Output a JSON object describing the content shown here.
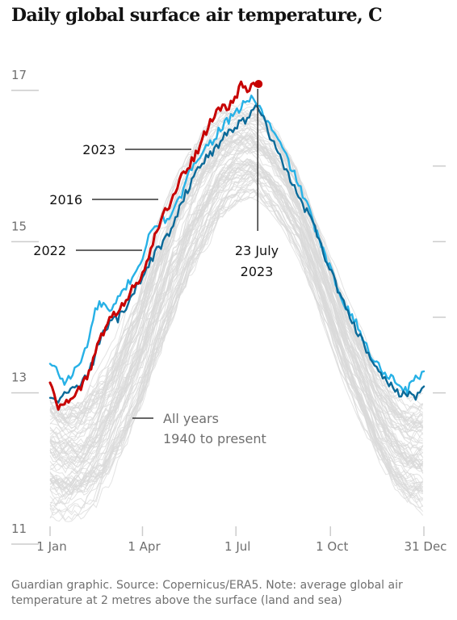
{
  "chart_data": {
    "type": "line",
    "title": "Daily global surface air temperature, C",
    "xlabel": "",
    "ylabel": "",
    "x_ticks": [
      {
        "day": 1,
        "label": "1 Jan"
      },
      {
        "day": 91,
        "label": "1 Apr"
      },
      {
        "day": 182,
        "label": "1 Jul"
      },
      {
        "day": 274,
        "label": "1 Oct"
      },
      {
        "day": 365,
        "label": "31 Dec"
      }
    ],
    "y_ticks": [
      {
        "value": 11,
        "label": "11"
      },
      {
        "value": 13,
        "label": "13"
      },
      {
        "value": 15,
        "label": "15"
      },
      {
        "value": 17,
        "label": "17"
      }
    ],
    "xlim": [
      1,
      365
    ],
    "ylim": [
      11,
      17
    ],
    "grid": false,
    "x_days": [
      1,
      15,
      32,
      46,
      60,
      74,
      91,
      105,
      121,
      135,
      152,
      166,
      182,
      196,
      204,
      213,
      227,
      244,
      258,
      274,
      288,
      305,
      319,
      335,
      349,
      365
    ],
    "envelope": {
      "name": "All years 1940 to present",
      "low": [
        11.1,
        11.05,
        11.1,
        11.25,
        11.55,
        11.9,
        12.45,
        13.0,
        13.6,
        14.1,
        14.6,
        15.0,
        15.25,
        15.35,
        15.3,
        15.2,
        14.95,
        14.5,
        14.0,
        13.4,
        12.85,
        12.3,
        11.85,
        11.45,
        11.2,
        11.1
      ],
      "high": [
        12.9,
        12.75,
        12.8,
        13.05,
        13.4,
        13.85,
        14.45,
        15.0,
        15.55,
        15.95,
        16.3,
        16.5,
        16.6,
        16.6,
        16.55,
        16.45,
        16.2,
        15.75,
        15.25,
        14.65,
        14.1,
        13.6,
        13.15,
        12.85,
        12.75,
        12.8
      ],
      "count": 84,
      "color": "#d9d9d9"
    },
    "series": [
      {
        "name": "2016",
        "label": "2016",
        "color": "#27b1e6",
        "x": [
          1,
          8,
          15,
          22,
          32,
          39,
          46,
          53,
          60,
          67,
          74,
          81,
          91,
          98,
          105,
          112,
          121,
          128,
          135,
          142,
          152,
          159,
          166,
          173,
          182,
          189,
          196,
          203,
          210,
          217,
          227,
          234,
          244,
          251,
          258,
          265,
          274,
          281,
          288,
          295,
          305,
          312,
          319,
          326,
          335,
          342,
          349,
          356,
          365
        ],
        "values": [
          13.15,
          13.05,
          12.9,
          13.0,
          13.2,
          13.5,
          13.9,
          13.95,
          13.8,
          14.0,
          14.15,
          14.3,
          14.55,
          14.85,
          15.0,
          15.05,
          15.15,
          15.35,
          15.6,
          15.85,
          16.0,
          16.1,
          16.25,
          16.35,
          16.45,
          16.6,
          16.65,
          16.6,
          16.4,
          16.25,
          16.0,
          15.8,
          15.5,
          15.25,
          15.0,
          14.7,
          14.4,
          14.15,
          13.95,
          13.8,
          13.5,
          13.3,
          13.15,
          13.05,
          12.95,
          12.85,
          12.8,
          12.95,
          13.05
        ]
      },
      {
        "name": "2022",
        "label": "2022",
        "color": "#0b6a99",
        "x": [
          1,
          8,
          15,
          22,
          32,
          39,
          46,
          53,
          60,
          67,
          74,
          81,
          91,
          98,
          105,
          112,
          121,
          128,
          135,
          142,
          152,
          159,
          166,
          173,
          182,
          189,
          196,
          203,
          210,
          217,
          227,
          234,
          244,
          251,
          258,
          265,
          274,
          281,
          288,
          295,
          305,
          312,
          319,
          326,
          335,
          342,
          349,
          356,
          365
        ],
        "values": [
          12.7,
          12.65,
          12.75,
          12.8,
          12.9,
          13.05,
          13.3,
          13.6,
          13.7,
          13.75,
          13.85,
          14.05,
          14.3,
          14.5,
          14.65,
          14.75,
          15.0,
          15.25,
          15.45,
          15.7,
          15.85,
          15.95,
          16.05,
          16.2,
          16.3,
          16.35,
          16.45,
          16.55,
          16.35,
          16.1,
          15.85,
          15.6,
          15.35,
          15.15,
          14.95,
          14.7,
          14.4,
          14.15,
          13.9,
          13.7,
          13.45,
          13.25,
          13.1,
          12.95,
          12.85,
          12.75,
          12.75,
          12.7,
          12.85
        ]
      },
      {
        "name": "2023",
        "label": "2023",
        "color": "#c70000",
        "x": [
          1,
          5,
          10,
          15,
          20,
          25,
          32,
          39,
          46,
          53,
          60,
          67,
          74,
          81,
          91,
          98,
          105,
          112,
          121,
          128,
          135,
          142,
          152,
          159,
          166,
          173,
          182,
          187,
          193,
          198,
          204
        ],
        "values": [
          12.9,
          12.75,
          12.55,
          12.65,
          12.7,
          12.75,
          12.85,
          13.05,
          13.35,
          13.55,
          13.75,
          13.85,
          13.95,
          14.15,
          14.35,
          14.6,
          14.9,
          15.15,
          15.35,
          15.6,
          15.75,
          15.9,
          16.2,
          16.4,
          16.55,
          16.5,
          16.65,
          16.9,
          16.75,
          16.85,
          16.85
        ]
      }
    ],
    "annotations": [
      {
        "id": "record",
        "line1": "23 July",
        "line2": "2023",
        "x_day": 204,
        "y_value": 16.85
      },
      {
        "id": "all-years",
        "line1": "All years",
        "line2": "1940 to present"
      }
    ]
  },
  "footnote": "Guardian graphic. Source: Copernicus/ERA5. Note: average global air temperature at 2 metres above the surface (land and sea)"
}
